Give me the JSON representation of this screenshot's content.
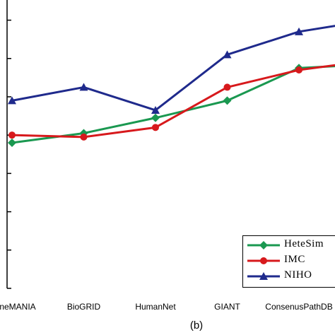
{
  "caption": "(b)",
  "chart_data": {
    "type": "line",
    "categories": [
      "GeneMANIA",
      "BioGRID",
      "HumanNet",
      "GIANT",
      "ConsenusPathDB",
      ""
    ],
    "ylim": [
      0,
      14.5
    ],
    "grid": false,
    "legend_position": "bottom-right",
    "series": [
      {
        "name": "HeteSim",
        "color": "#1a9850",
        "marker": "diamond",
        "values": [
          7.6,
          8.1,
          8.9,
          9.8,
          11.5,
          11.7
        ]
      },
      {
        "name": "IMC",
        "color": "#d7191c",
        "marker": "circle",
        "values": [
          8.0,
          7.9,
          8.4,
          10.5,
          11.4,
          11.9
        ]
      },
      {
        "name": "NIHO",
        "color": "#1f2a8c",
        "marker": "triangle",
        "values": [
          9.8,
          10.5,
          9.3,
          12.2,
          13.4,
          14.0
        ]
      }
    ]
  }
}
